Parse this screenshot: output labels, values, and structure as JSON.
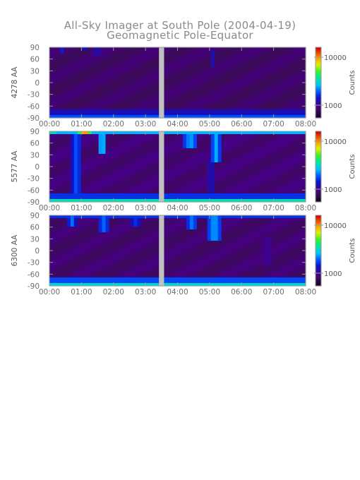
{
  "title_line1": "All-Sky Imager at South Pole (2004-04-19)",
  "title_line2": "Geomagnetic Pole-Equator",
  "chart_data": {
    "type": "heatmap",
    "x_range_hours": [
      0,
      8
    ],
    "x_ticks": [
      "00:00",
      "01:00",
      "02:00",
      "03:00",
      "04:00",
      "05:00",
      "06:00",
      "07:00",
      "08:00"
    ],
    "y_ticks": [
      "90",
      "60",
      "30",
      "0",
      "-30",
      "-60",
      "-90"
    ],
    "y_range": [
      -90,
      90
    ],
    "data_gap_hours": [
      3.42,
      3.58
    ],
    "colorbar": {
      "label": "Counts",
      "scale": "log",
      "ticks": [
        "10000",
        "1000"
      ]
    },
    "panels": [
      {
        "wavelength": "4278 AA",
        "bg_level": 0.12,
        "bands": [
          {
            "y0": -90,
            "y1": -82,
            "level": 0.36
          },
          {
            "y0": -82,
            "y1": -70,
            "level": 0.25
          }
        ],
        "events": [
          {
            "t": 0.35,
            "w": 0.15,
            "y0": 78,
            "y1": 90,
            "level": 0.35
          },
          {
            "t": 1.1,
            "w": 0.12,
            "y0": 80,
            "y1": 90,
            "level": 0.38
          },
          {
            "t": 1.5,
            "w": 0.3,
            "y0": 70,
            "y1": 90,
            "level": 0.25
          },
          {
            "t": 5.1,
            "w": 0.1,
            "y0": 40,
            "y1": 80,
            "level": 0.25
          }
        ]
      },
      {
        "wavelength": "5577 AA",
        "bg_level": 0.14,
        "bands": [
          {
            "y0": -90,
            "y1": -84,
            "level": 0.55
          },
          {
            "y0": -84,
            "y1": -70,
            "level": 0.32
          },
          {
            "y0": 82,
            "y1": 90,
            "level": 0.45
          }
        ],
        "events": [
          {
            "t": 0.1,
            "w": 0.35,
            "y0": 80,
            "y1": 90,
            "level": 0.6
          },
          {
            "t": 0.85,
            "w": 0.3,
            "y0": -70,
            "y1": 90,
            "level": 0.38
          },
          {
            "t": 1.1,
            "w": 0.35,
            "y0": 82,
            "y1": 90,
            "level": 0.95
          },
          {
            "t": 1.65,
            "w": 0.3,
            "y0": 35,
            "y1": 90,
            "level": 0.5
          },
          {
            "t": 4.4,
            "w": 0.45,
            "y0": 45,
            "y1": 90,
            "level": 0.45
          },
          {
            "t": 5.2,
            "w": 0.3,
            "y0": 10,
            "y1": 90,
            "level": 0.45
          },
          {
            "t": 5.05,
            "w": 0.2,
            "y0": -70,
            "y1": 20,
            "level": 0.28
          }
        ]
      },
      {
        "wavelength": "6300 AA",
        "bg_level": 0.13,
        "bands": [
          {
            "y0": -90,
            "y1": -82,
            "level": 0.52
          },
          {
            "y0": -82,
            "y1": -65,
            "level": 0.35
          },
          {
            "y0": 85,
            "y1": 90,
            "level": 0.32
          }
        ],
        "events": [
          {
            "t": 0.7,
            "w": 0.25,
            "y0": 60,
            "y1": 90,
            "level": 0.4
          },
          {
            "t": 1.7,
            "w": 0.4,
            "y0": 50,
            "y1": 90,
            "level": 0.38
          },
          {
            "t": 2.7,
            "w": 0.4,
            "y0": 60,
            "y1": 90,
            "level": 0.32
          },
          {
            "t": 4.45,
            "w": 0.4,
            "y0": 55,
            "y1": 90,
            "level": 0.4
          },
          {
            "t": 5.15,
            "w": 0.45,
            "y0": 25,
            "y1": 90,
            "level": 0.45
          },
          {
            "t": 6.8,
            "w": 0.4,
            "y0": -40,
            "y1": 30,
            "level": 0.2
          }
        ]
      }
    ]
  }
}
